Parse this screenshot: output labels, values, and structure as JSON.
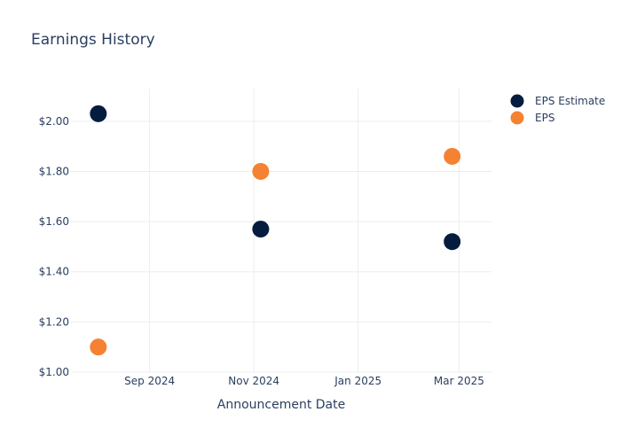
{
  "chart_data": {
    "type": "scatter",
    "title": "Earnings History",
    "xlabel": "Announcement Date",
    "ylabel": "",
    "x_tick_labels": [
      {
        "date": "2024-09-01",
        "label": "Sep 2024"
      },
      {
        "date": "2024-11-01",
        "label": "Nov 2024"
      },
      {
        "date": "2025-01-01",
        "label": "Jan 2025"
      },
      {
        "date": "2025-03-01",
        "label": "Mar 2025"
      }
    ],
    "xlim": [
      "2024-07-17",
      "2025-03-20"
    ],
    "y_tick_labels": [
      {
        "value": 1.0,
        "label": "$1.00"
      },
      {
        "value": 1.2,
        "label": "$1.20"
      },
      {
        "value": 1.4,
        "label": "$1.40"
      },
      {
        "value": 1.6,
        "label": "$1.60"
      },
      {
        "value": 1.8,
        "label": "$1.80"
      },
      {
        "value": 2.0,
        "label": "$2.00"
      }
    ],
    "ylim": [
      1.0,
      2.13
    ],
    "grid": true,
    "legend_position": "top-right",
    "series": [
      {
        "name": "EPS Estimate",
        "color": "#061c3f",
        "points": [
          {
            "x": "2024-08-02",
            "y": 2.03
          },
          {
            "x": "2024-11-05",
            "y": 1.57
          },
          {
            "x": "2025-02-25",
            "y": 1.52
          }
        ]
      },
      {
        "name": "EPS",
        "color": "#f58232",
        "points": [
          {
            "x": "2024-08-02",
            "y": 1.1
          },
          {
            "x": "2024-11-05",
            "y": 1.8
          },
          {
            "x": "2025-02-25",
            "y": 1.86
          }
        ]
      }
    ]
  }
}
